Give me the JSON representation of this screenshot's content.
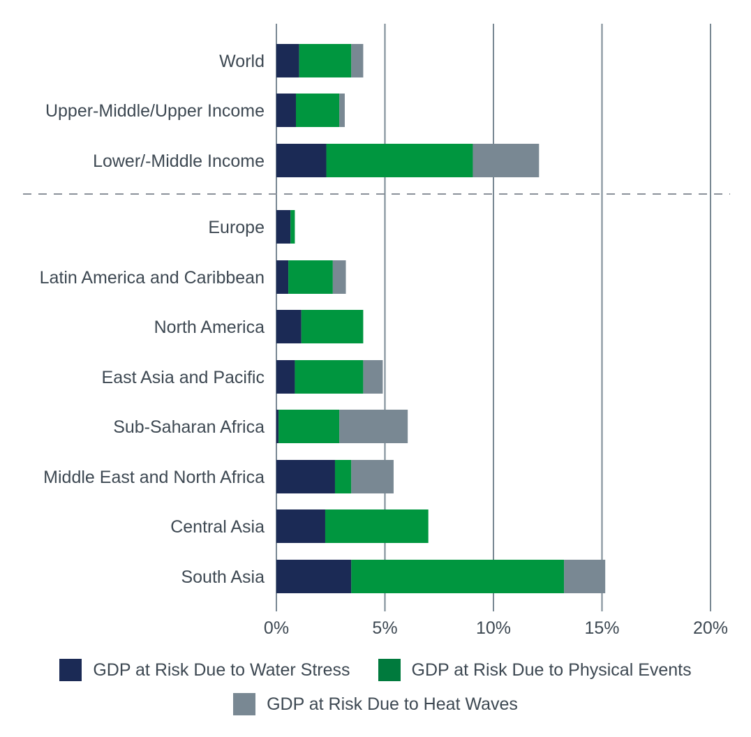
{
  "chart_data": {
    "type": "bar",
    "orientation": "horizontal",
    "stacked": true,
    "categories": [
      "World",
      "Upper-Middle/Upper Income",
      "Lower/-Middle Income",
      "Europe",
      "Latin America and Caribbean",
      "North America",
      "East Asia and Pacific",
      "Sub-Saharan Africa",
      "Middle East and North Africa",
      "Central Asia",
      "South Asia"
    ],
    "group_separator_after_index": 2,
    "series": [
      {
        "name": "GDP at Risk Due to Water Stress",
        "color": "#1b2a55",
        "values": [
          1.05,
          0.9,
          2.3,
          0.65,
          0.55,
          1.15,
          0.85,
          0.1,
          2.7,
          2.25,
          3.45
        ]
      },
      {
        "name": "GDP at Risk Due to Physical Events",
        "color": "#00963f",
        "values": [
          2.4,
          2.0,
          6.75,
          0.2,
          2.05,
          2.85,
          3.15,
          2.8,
          0.75,
          4.75,
          9.8
        ]
      },
      {
        "name": "GDP at Risk Due to Heat Waves",
        "color": "#798893",
        "values": [
          0.55,
          0.25,
          3.05,
          0.0,
          0.6,
          0.0,
          0.9,
          3.15,
          1.95,
          0.0,
          1.9
        ]
      }
    ],
    "xlim": [
      0,
      20
    ],
    "x_ticks": [
      0,
      5,
      10,
      15,
      20
    ],
    "x_tick_labels": [
      "0%",
      "5%",
      "10%",
      "15%",
      "20%"
    ],
    "grid": "vertical",
    "legend_placement": "bottom",
    "title": "",
    "xlabel": "",
    "ylabel": ""
  },
  "legend": {
    "items": [
      {
        "label": "GDP at Risk Due to Water Stress",
        "color": "#1b2a55"
      },
      {
        "label": "GDP at Risk Due to Physical Events",
        "color": "#007a3d"
      },
      {
        "label": "GDP at Risk Due to Heat Waves",
        "color": "#798893"
      }
    ]
  },
  "colors": {
    "grid": "#798893",
    "separator": "#8a9199",
    "text": "#3d4852"
  }
}
